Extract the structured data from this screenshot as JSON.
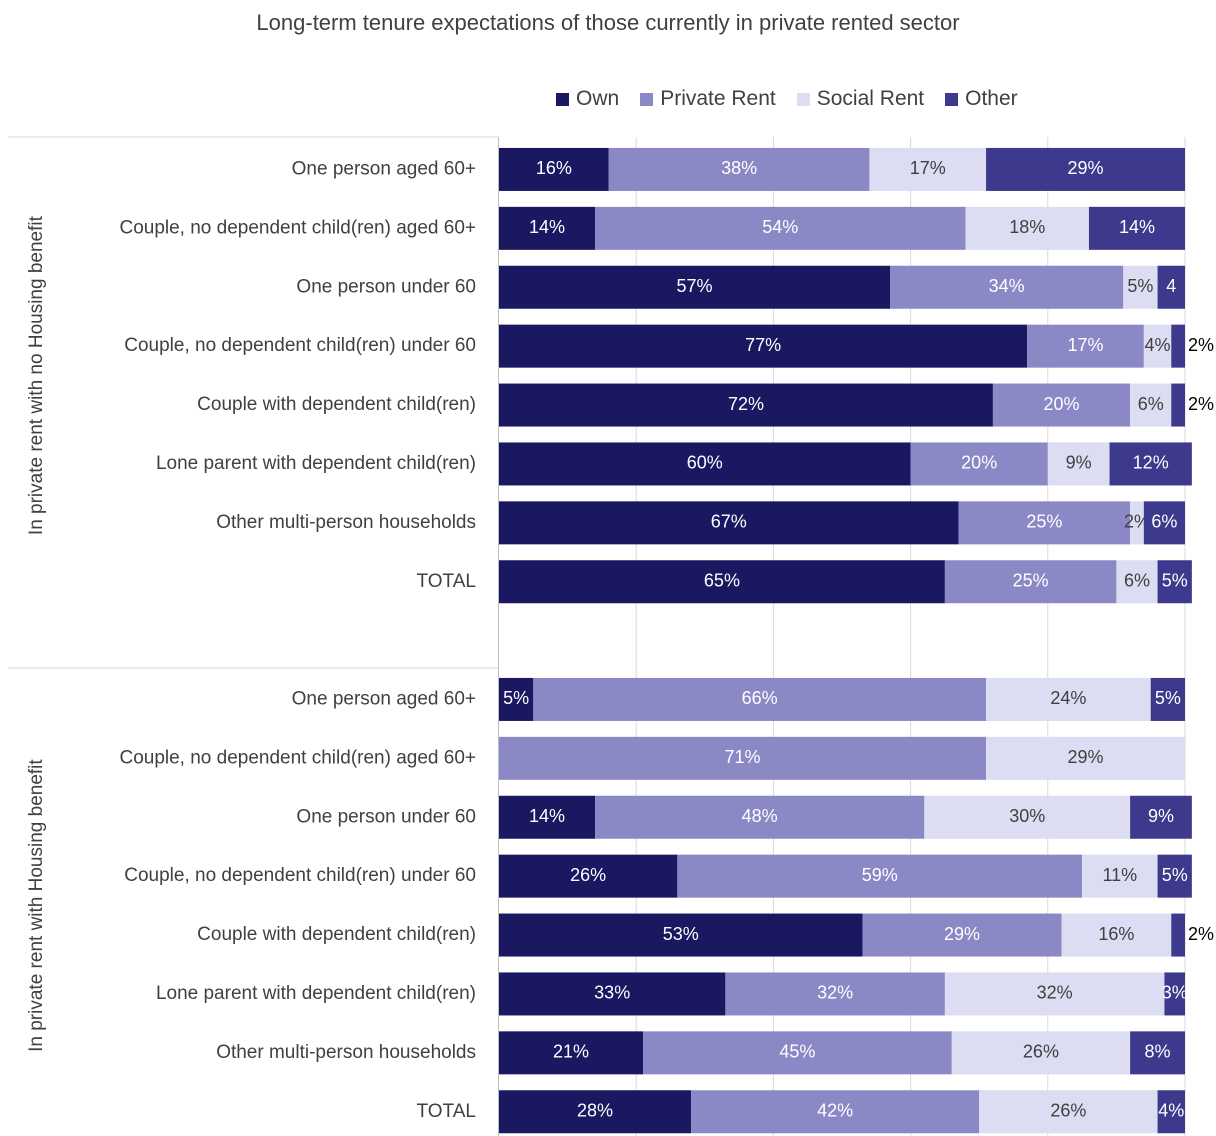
{
  "chart_data": {
    "type": "bar",
    "orientation": "horizontal",
    "stacked": "percent",
    "title": "Long-term tenure expectations of those currently in private rented sector",
    "legend_position": "top",
    "grid": true,
    "xlim": [
      0,
      100
    ],
    "series": [
      {
        "name": "Own",
        "color": "#1b1862"
      },
      {
        "name": "Private Rent",
        "color": "#8b88c6"
      },
      {
        "name": "Social Rent",
        "color": "#dcdcf2"
      },
      {
        "name": "Other",
        "color": "#3d3a8d"
      }
    ],
    "groups": [
      {
        "label": "In private rent with no Housing benefit",
        "rows": [
          {
            "label": "One person aged 60+",
            "values": [
              16,
              38,
              17,
              29
            ],
            "labels": [
              "16%",
              "38%",
              "17%",
              "29%"
            ]
          },
          {
            "label": "Couple, no dependent child(ren) aged 60+",
            "values": [
              14,
              54,
              18,
              14
            ],
            "labels": [
              "14%",
              "54%",
              "18%",
              "14%"
            ]
          },
          {
            "label": "One person under 60",
            "values": [
              57,
              34,
              5,
              4
            ],
            "labels": [
              "57%",
              "34%",
              "5%",
              "4"
            ]
          },
          {
            "label": "Couple, no dependent child(ren) under 60",
            "values": [
              77,
              17,
              4,
              2
            ],
            "labels": [
              "77%",
              "17%",
              "4%",
              "2%"
            ]
          },
          {
            "label": "Couple with dependent child(ren)",
            "values": [
              72,
              20,
              6,
              2
            ],
            "labels": [
              "72%",
              "20%",
              "6%",
              "2%"
            ]
          },
          {
            "label": "Lone parent with dependent child(ren)",
            "values": [
              60,
              20,
              9,
              12
            ],
            "labels": [
              "60%",
              "20%",
              "9%",
              "12%"
            ]
          },
          {
            "label": "Other multi-person households",
            "values": [
              67,
              25,
              2,
              6
            ],
            "labels": [
              "67%",
              "25%",
              "2%",
              "6%"
            ]
          },
          {
            "label": "TOTAL",
            "values": [
              65,
              25,
              6,
              5
            ],
            "labels": [
              "65%",
              "25%",
              "6%",
              "5%"
            ]
          }
        ]
      },
      {
        "label": "In private rent with Housing benefit",
        "rows": [
          {
            "label": "One person aged 60+",
            "values": [
              5,
              66,
              24,
              5
            ],
            "labels": [
              "5%",
              "66%",
              "24%",
              "5%"
            ]
          },
          {
            "label": "Couple, no dependent child(ren) aged 60+",
            "values": [
              0,
              71,
              29,
              0
            ],
            "labels": [
              "",
              "71%",
              "29%",
              ""
            ]
          },
          {
            "label": "One person under 60",
            "values": [
              14,
              48,
              30,
              9
            ],
            "labels": [
              "14%",
              "48%",
              "30%",
              "9%"
            ]
          },
          {
            "label": "Couple, no dependent child(ren) under 60",
            "values": [
              26,
              59,
              11,
              5
            ],
            "labels": [
              "26%",
              "59%",
              "11%",
              "5%"
            ]
          },
          {
            "label": "Couple with dependent child(ren)",
            "values": [
              53,
              29,
              16,
              2
            ],
            "labels": [
              "53%",
              "29%",
              "16%",
              "2%"
            ]
          },
          {
            "label": "Lone parent with dependent child(ren)",
            "values": [
              33,
              32,
              32,
              3
            ],
            "labels": [
              "33%",
              "32%",
              "32%",
              "3%"
            ]
          },
          {
            "label": "Other multi-person households",
            "values": [
              21,
              45,
              26,
              8
            ],
            "labels": [
              "21%",
              "45%",
              "26%",
              "8%"
            ]
          },
          {
            "label": "TOTAL",
            "values": [
              28,
              42,
              26,
              4
            ],
            "labels": [
              "28%",
              "42%",
              "26%",
              "4%"
            ]
          }
        ]
      }
    ]
  }
}
